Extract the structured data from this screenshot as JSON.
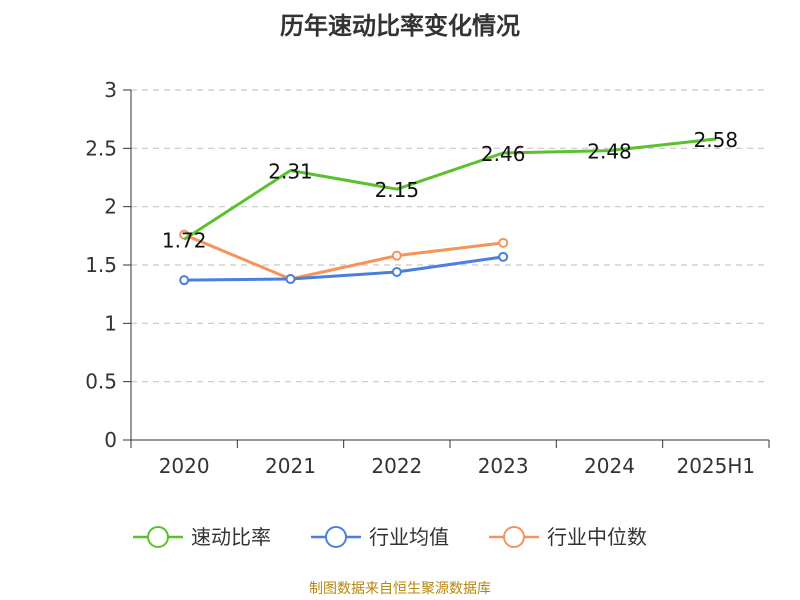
{
  "title": "历年速动比率变化情况",
  "source": "制图数据来自恒生聚源数据库",
  "chart_data": {
    "type": "line",
    "categories": [
      "2020",
      "2021",
      "2022",
      "2023",
      "2024",
      "2025H1"
    ],
    "ylim": [
      0,
      3
    ],
    "yticks": [
      "0",
      "0.5",
      "1",
      "1.5",
      "2",
      "2.5",
      "3"
    ],
    "grid": true,
    "legend_position": "bottom",
    "series": [
      {
        "name": "速动比率",
        "color": "#5ac12d",
        "values": [
          1.72,
          2.31,
          2.15,
          2.46,
          2.48,
          2.58
        ],
        "labels": [
          "1.72",
          "2.31",
          "2.15",
          "2.46",
          "2.48",
          "2.58"
        ]
      },
      {
        "name": "行业均值",
        "color": "#4a7fe0",
        "values": [
          1.37,
          1.38,
          1.44,
          1.57,
          null,
          null
        ]
      },
      {
        "name": "行业中位数",
        "color": "#f5935a",
        "values": [
          1.76,
          1.38,
          1.58,
          1.69,
          null,
          null
        ]
      }
    ]
  }
}
